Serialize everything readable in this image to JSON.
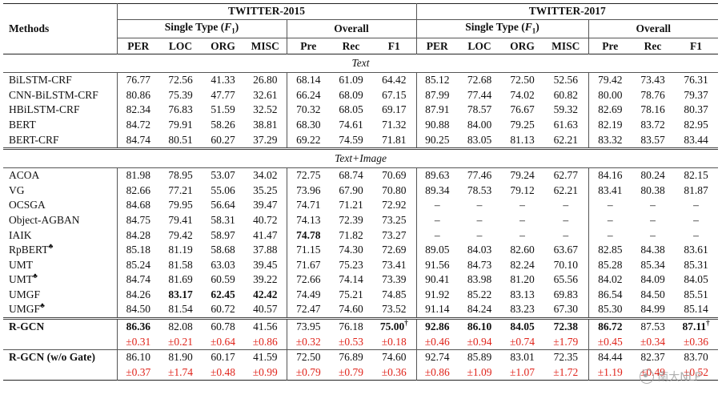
{
  "header": {
    "methods_label": "Methods",
    "dataset_a": "TWITTER-2015",
    "dataset_b": "TWITTER-2017",
    "single_type": "Single Type (",
    "f_sym": "F",
    "f_sub": "1",
    "single_type_end": ")",
    "overall": "Overall",
    "cols": [
      "PER",
      "LOC",
      "ORG",
      "MISC",
      "Pre",
      "Rec",
      "F1"
    ]
  },
  "sections": {
    "text": "Text",
    "text_image": "Text+Image"
  },
  "text_rows": [
    {
      "name": "BiLSTM-CRF",
      "v": [
        "76.77",
        "72.56",
        "41.33",
        "26.80",
        "68.14",
        "61.09",
        "64.42",
        "85.12",
        "72.68",
        "72.50",
        "52.56",
        "79.42",
        "73.43",
        "76.31"
      ]
    },
    {
      "name": "CNN-BiLSTM-CRF",
      "v": [
        "80.86",
        "75.39",
        "47.77",
        "32.61",
        "66.24",
        "68.09",
        "67.15",
        "87.99",
        "77.44",
        "74.02",
        "60.82",
        "80.00",
        "78.76",
        "79.37"
      ]
    },
    {
      "name": "HBiLSTM-CRF",
      "v": [
        "82.34",
        "76.83",
        "51.59",
        "32.52",
        "70.32",
        "68.05",
        "69.17",
        "87.91",
        "78.57",
        "76.67",
        "59.32",
        "82.69",
        "78.16",
        "80.37"
      ]
    },
    {
      "name": "BERT",
      "v": [
        "84.72",
        "79.91",
        "58.26",
        "38.81",
        "68.30",
        "74.61",
        "71.32",
        "90.88",
        "84.00",
        "79.25",
        "61.63",
        "82.19",
        "83.72",
        "82.95"
      ]
    },
    {
      "name": "BERT-CRF",
      "v": [
        "84.74",
        "80.51",
        "60.27",
        "37.29",
        "69.22",
        "74.59",
        "71.81",
        "90.25",
        "83.05",
        "81.13",
        "62.21",
        "83.32",
        "83.57",
        "83.44"
      ]
    }
  ],
  "image_rows": [
    {
      "name": "ACOA",
      "mark": "",
      "v": [
        "81.98",
        "78.95",
        "53.07",
        "34.02",
        "72.75",
        "68.74",
        "70.69",
        "89.63",
        "77.46",
        "79.24",
        "62.77",
        "84.16",
        "80.24",
        "82.15"
      ]
    },
    {
      "name": "VG",
      "mark": "",
      "v": [
        "82.66",
        "77.21",
        "55.06",
        "35.25",
        "73.96",
        "67.90",
        "70.80",
        "89.34",
        "78.53",
        "79.12",
        "62.21",
        "83.41",
        "80.38",
        "81.87"
      ]
    },
    {
      "name": "OCSGA",
      "mark": "",
      "v": [
        "84.68",
        "79.95",
        "56.64",
        "39.47",
        "74.71",
        "71.21",
        "72.92",
        "–",
        "–",
        "–",
        "–",
        "–",
        "–",
        "–"
      ]
    },
    {
      "name": "Object-AGBAN",
      "mark": "",
      "v": [
        "84.75",
        "79.41",
        "58.31",
        "40.72",
        "74.13",
        "72.39",
        "73.25",
        "–",
        "–",
        "–",
        "–",
        "–",
        "–",
        "–"
      ]
    },
    {
      "name": "IAIK",
      "mark": "",
      "v": [
        "84.28",
        "79.42",
        "58.97",
        "41.47",
        "74.78",
        "71.82",
        "73.27",
        "–",
        "–",
        "–",
        "–",
        "–",
        "–",
        "–"
      ]
    },
    {
      "name": "RpBERT",
      "mark": "♣",
      "v": [
        "85.18",
        "81.19",
        "58.68",
        "37.88",
        "71.15",
        "74.30",
        "72.69",
        "89.05",
        "84.03",
        "82.60",
        "63.67",
        "82.85",
        "84.38",
        "83.61"
      ]
    },
    {
      "name": "UMT",
      "mark": "",
      "v": [
        "85.24",
        "81.58",
        "63.03",
        "39.45",
        "71.67",
        "75.23",
        "73.41",
        "91.56",
        "84.73",
        "82.24",
        "70.10",
        "85.28",
        "85.34",
        "85.31"
      ]
    },
    {
      "name": "UMT",
      "mark": "♣",
      "v": [
        "84.74",
        "81.69",
        "60.59",
        "39.22",
        "72.66",
        "74.14",
        "73.39",
        "90.41",
        "83.98",
        "81.20",
        "65.56",
        "84.02",
        "84.09",
        "84.05"
      ]
    },
    {
      "name": "UMGF",
      "mark": "",
      "v": [
        "84.26",
        "83.17",
        "62.45",
        "42.42",
        "74.49",
        "75.21",
        "74.85",
        "91.92",
        "85.22",
        "83.13",
        "69.83",
        "86.54",
        "84.50",
        "85.51"
      ]
    },
    {
      "name": "UMGF",
      "mark": "♣",
      "v": [
        "84.50",
        "81.54",
        "60.72",
        "40.57",
        "72.47",
        "74.60",
        "73.52",
        "91.14",
        "84.24",
        "83.23",
        "67.30",
        "85.30",
        "84.99",
        "85.14"
      ]
    }
  ],
  "ours_rows": [
    {
      "name": "R-GCN",
      "v": [
        "86.36",
        "82.08",
        "60.78",
        "41.56",
        "73.95",
        "76.18",
        "75.00",
        "92.86",
        "86.10",
        "84.05",
        "72.38",
        "86.72",
        "87.53",
        "87.11"
      ],
      "std": [
        "±0.31",
        "±0.21",
        "±0.64",
        "±0.86",
        "±0.32",
        "±0.53",
        "±0.18",
        "±0.46",
        "±0.94",
        "±0.74",
        "±1.79",
        "±0.45",
        "±0.34",
        "±0.36"
      ]
    },
    {
      "name": "R-GCN (w/o Gate)",
      "v": [
        "86.10",
        "81.90",
        "60.17",
        "41.59",
        "72.50",
        "76.89",
        "74.60",
        "92.74",
        "85.89",
        "83.01",
        "72.35",
        "84.44",
        "82.37",
        "83.70"
      ],
      "std": [
        "±0.37",
        "±1.74",
        "±0.48",
        "±0.99",
        "±0.79",
        "±0.79",
        "±0.36",
        "±0.86",
        "±1.09",
        "±1.07",
        "±1.72",
        "±1.19",
        "±0.49",
        "±0.52"
      ]
    }
  ],
  "dagger": "†",
  "watermark": "南大NLP",
  "style": {
    "std_color": "#e0241b",
    "rule_color": "#222222"
  }
}
